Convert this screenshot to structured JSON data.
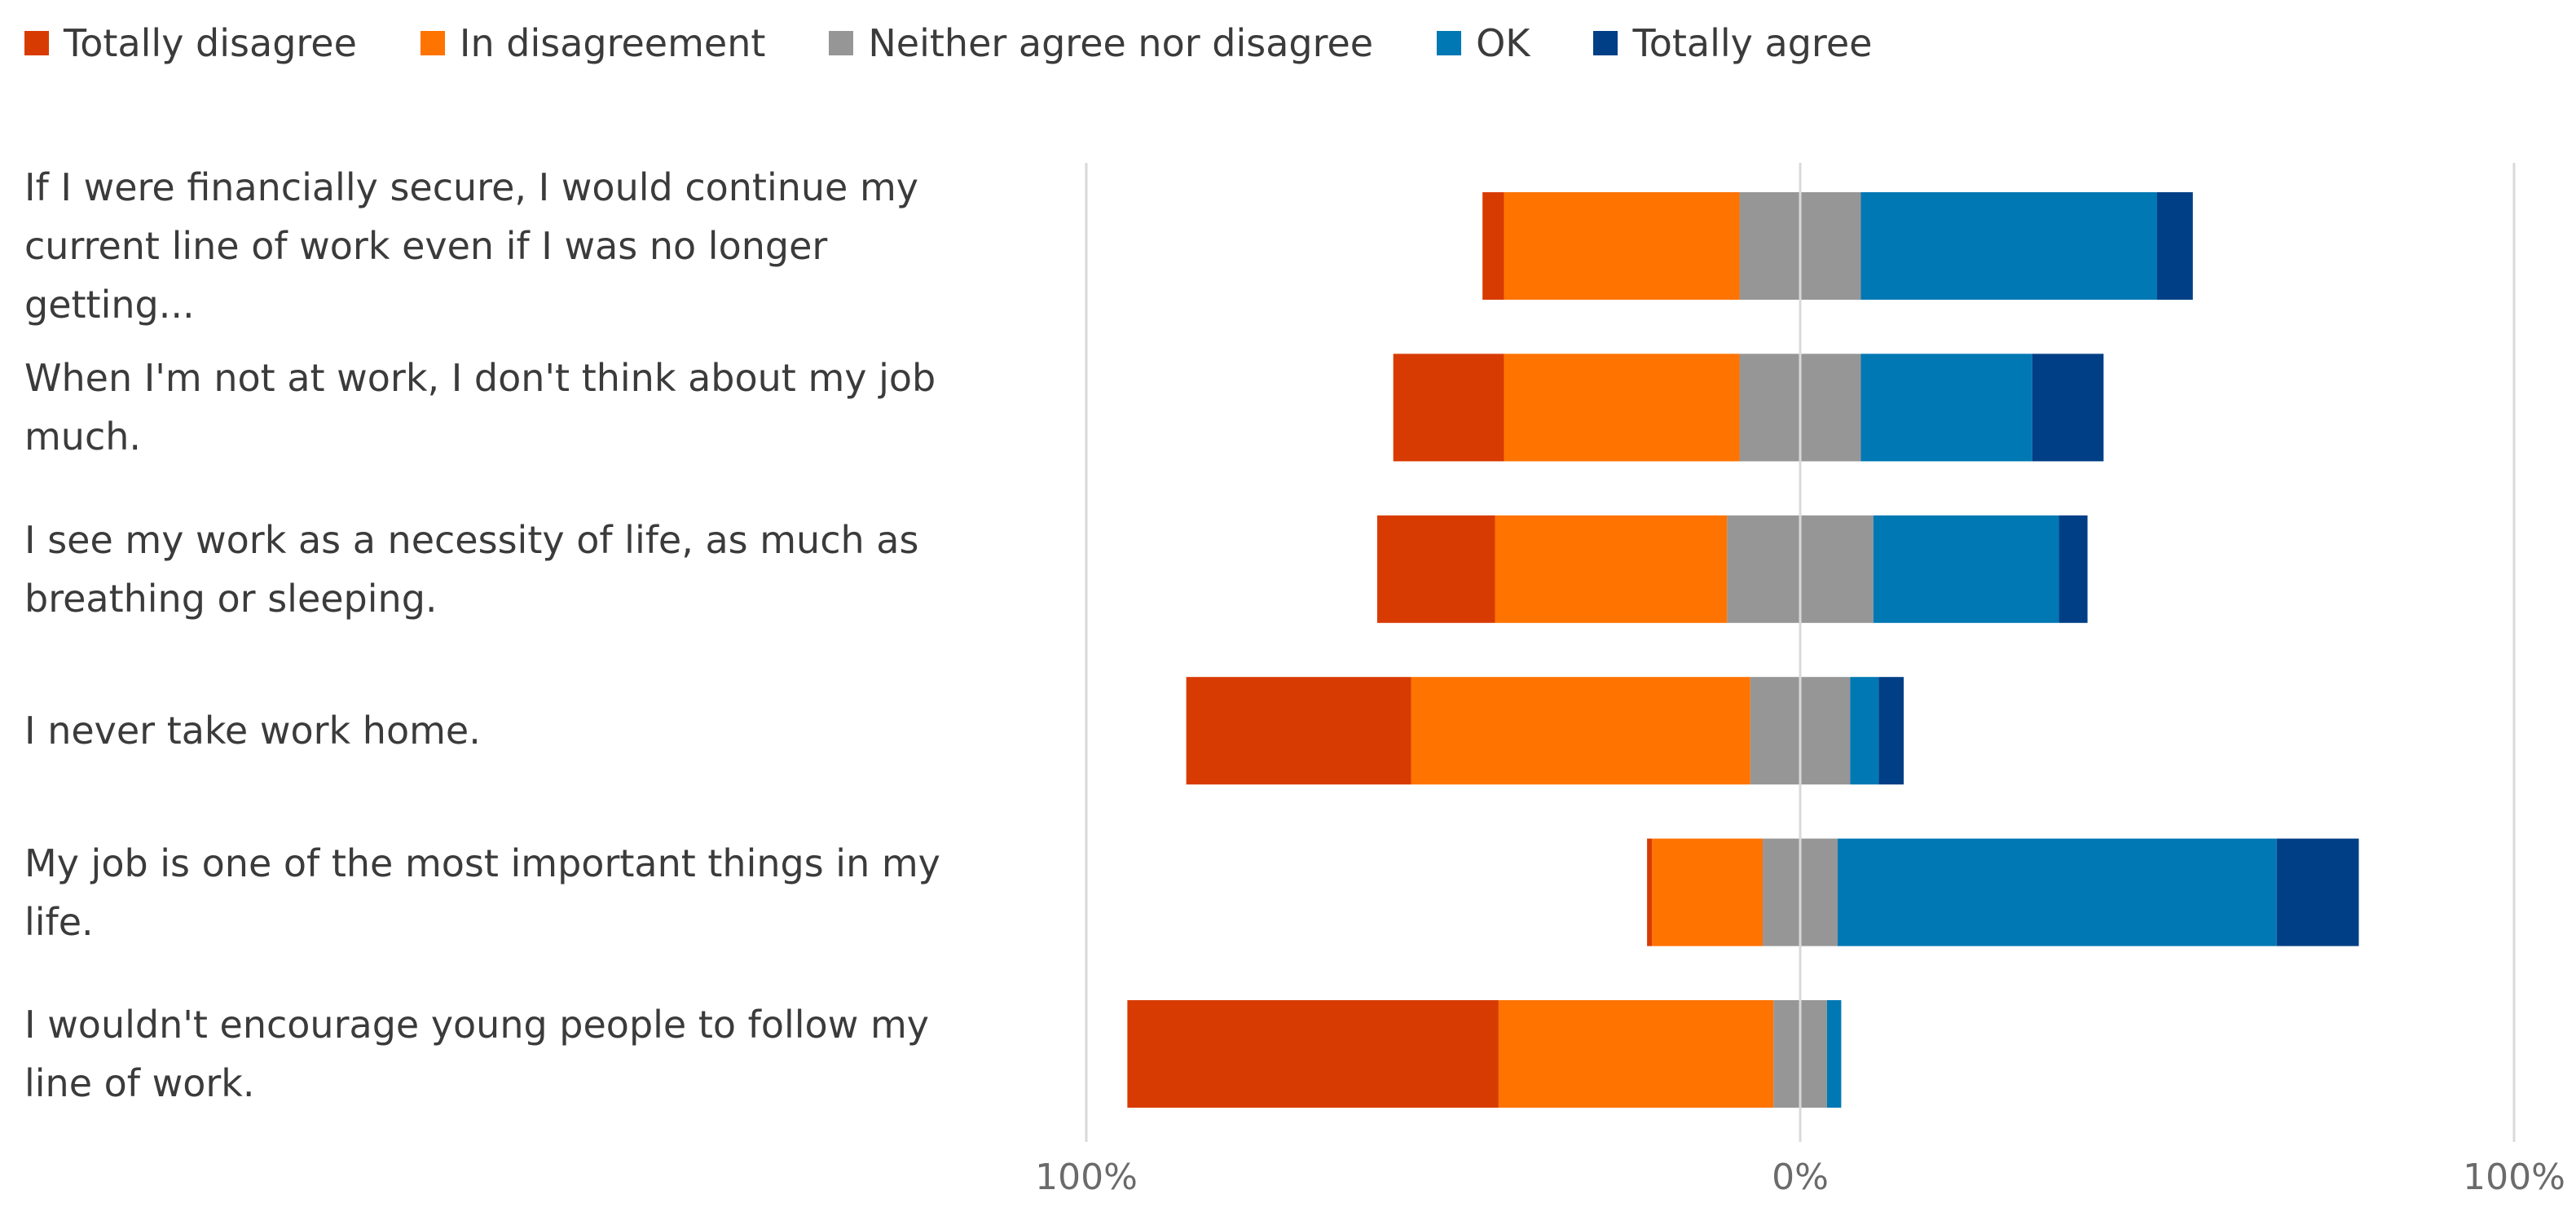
{
  "chart_data": {
    "type": "bar",
    "orientation": "horizontal",
    "stacked": "diverging",
    "title": "",
    "xlabel": "",
    "ylabel": "",
    "xlim": [
      -100,
      100
    ],
    "x_ticks": [
      {
        "value": -100,
        "label": "100%"
      },
      {
        "value": 0,
        "label": "0%"
      },
      {
        "value": 100,
        "label": "100%"
      }
    ],
    "legend_position": "top-left",
    "colors": {
      "Totally disagree": "#d83b01",
      "In disagreement": "#ff7300",
      "Neither agree nor disagree": "#969696",
      "OK": "#0078b4",
      "Totally agree": "#003f86",
      "axis": "#d9d9d9"
    },
    "series_names": [
      "Totally disagree",
      "In disagreement",
      "Neither agree nor disagree",
      "OK",
      "Totally agree"
    ],
    "categories": [
      "If I were financially secure, I would continue my current line of work even if I was no longer getting...",
      "When I'm not at work, I don't think about my job much.",
      "I see my work as a necessity of life, as much as breathing or sleeping.",
      "I never take work home.",
      "My job is one of the most important things in my life.",
      "I wouldn't encourage young people to follow my line of work."
    ],
    "series": [
      {
        "name": "Totally disagree",
        "values": [
          3,
          15.5,
          16.5,
          31.5,
          0.7,
          52
        ]
      },
      {
        "name": "In disagreement",
        "values": [
          33,
          33,
          32.5,
          47.5,
          15.5,
          38.5
        ]
      },
      {
        "name": "Neither agree nor disagree",
        "values": [
          17,
          17,
          20.5,
          14,
          10.5,
          7.5
        ]
      },
      {
        "name": "OK",
        "values": [
          41.5,
          24,
          26,
          4,
          61.5,
          2
        ]
      },
      {
        "name": "Totally agree",
        "values": [
          5,
          10,
          4,
          3.5,
          11.5,
          0
        ]
      }
    ]
  }
}
